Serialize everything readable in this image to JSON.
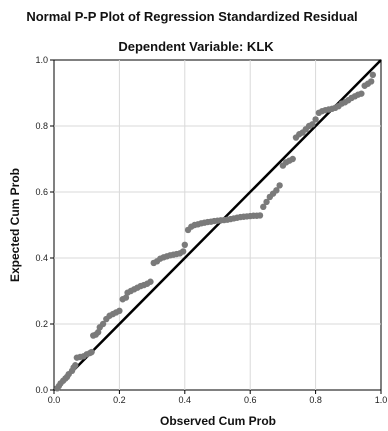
{
  "chart_data": {
    "type": "scatter",
    "title": "Normal P-P Plot of Regression Standardized Residual",
    "subtitle": "Dependent Variable: KLK",
    "xlabel": "Observed Cum Prob",
    "ylabel": "Expected Cum Prob",
    "xlim": [
      0,
      1
    ],
    "ylim": [
      0,
      1
    ],
    "xticks": [
      "0.0",
      "0.2",
      "0.4",
      "0.6",
      "0.8",
      "1.0"
    ],
    "yticks": [
      "0.0",
      "0.2",
      "0.4",
      "0.6",
      "0.8",
      "1.0"
    ],
    "grid": true,
    "reference_line": {
      "from": [
        0,
        0
      ],
      "to": [
        1,
        1
      ],
      "color": "#000000"
    },
    "point_color": "#7a7a7a",
    "points": [
      [
        0.01,
        0.005
      ],
      [
        0.015,
        0.012
      ],
      [
        0.02,
        0.02
      ],
      [
        0.028,
        0.028
      ],
      [
        0.035,
        0.035
      ],
      [
        0.04,
        0.04
      ],
      [
        0.045,
        0.048
      ],
      [
        0.055,
        0.058
      ],
      [
        0.06,
        0.068
      ],
      [
        0.065,
        0.075
      ],
      [
        0.07,
        0.098
      ],
      [
        0.08,
        0.1
      ],
      [
        0.09,
        0.102
      ],
      [
        0.1,
        0.108
      ],
      [
        0.11,
        0.112
      ],
      [
        0.115,
        0.115
      ],
      [
        0.12,
        0.165
      ],
      [
        0.128,
        0.168
      ],
      [
        0.135,
        0.175
      ],
      [
        0.14,
        0.19
      ],
      [
        0.15,
        0.2
      ],
      [
        0.16,
        0.215
      ],
      [
        0.17,
        0.225
      ],
      [
        0.18,
        0.23
      ],
      [
        0.19,
        0.235
      ],
      [
        0.2,
        0.24
      ],
      [
        0.21,
        0.275
      ],
      [
        0.22,
        0.28
      ],
      [
        0.225,
        0.295
      ],
      [
        0.235,
        0.3
      ],
      [
        0.245,
        0.305
      ],
      [
        0.255,
        0.31
      ],
      [
        0.265,
        0.315
      ],
      [
        0.275,
        0.318
      ],
      [
        0.285,
        0.322
      ],
      [
        0.295,
        0.328
      ],
      [
        0.305,
        0.385
      ],
      [
        0.315,
        0.39
      ],
      [
        0.325,
        0.398
      ],
      [
        0.335,
        0.402
      ],
      [
        0.345,
        0.405
      ],
      [
        0.355,
        0.408
      ],
      [
        0.365,
        0.41
      ],
      [
        0.375,
        0.412
      ],
      [
        0.385,
        0.414
      ],
      [
        0.395,
        0.42
      ],
      [
        0.4,
        0.44
      ],
      [
        0.41,
        0.485
      ],
      [
        0.42,
        0.495
      ],
      [
        0.43,
        0.5
      ],
      [
        0.44,
        0.502
      ],
      [
        0.45,
        0.505
      ],
      [
        0.46,
        0.507
      ],
      [
        0.47,
        0.509
      ],
      [
        0.48,
        0.51
      ],
      [
        0.49,
        0.512
      ],
      [
        0.5,
        0.513
      ],
      [
        0.51,
        0.514
      ],
      [
        0.52,
        0.515
      ],
      [
        0.53,
        0.516
      ],
      [
        0.54,
        0.518
      ],
      [
        0.55,
        0.52
      ],
      [
        0.56,
        0.522
      ],
      [
        0.57,
        0.524
      ],
      [
        0.58,
        0.525
      ],
      [
        0.59,
        0.526
      ],
      [
        0.6,
        0.527
      ],
      [
        0.61,
        0.528
      ],
      [
        0.62,
        0.528
      ],
      [
        0.63,
        0.529
      ],
      [
        0.64,
        0.555
      ],
      [
        0.65,
        0.57
      ],
      [
        0.66,
        0.585
      ],
      [
        0.67,
        0.595
      ],
      [
        0.68,
        0.605
      ],
      [
        0.69,
        0.62
      ],
      [
        0.7,
        0.68
      ],
      [
        0.71,
        0.69
      ],
      [
        0.72,
        0.695
      ],
      [
        0.73,
        0.7
      ],
      [
        0.74,
        0.765
      ],
      [
        0.75,
        0.775
      ],
      [
        0.76,
        0.78
      ],
      [
        0.77,
        0.79
      ],
      [
        0.78,
        0.8
      ],
      [
        0.79,
        0.805
      ],
      [
        0.8,
        0.82
      ],
      [
        0.81,
        0.84
      ],
      [
        0.82,
        0.845
      ],
      [
        0.83,
        0.848
      ],
      [
        0.84,
        0.85
      ],
      [
        0.85,
        0.852
      ],
      [
        0.86,
        0.855
      ],
      [
        0.87,
        0.86
      ],
      [
        0.88,
        0.868
      ],
      [
        0.89,
        0.872
      ],
      [
        0.9,
        0.878
      ],
      [
        0.91,
        0.885
      ],
      [
        0.92,
        0.89
      ],
      [
        0.93,
        0.895
      ],
      [
        0.94,
        0.898
      ],
      [
        0.95,
        0.922
      ],
      [
        0.96,
        0.928
      ],
      [
        0.97,
        0.935
      ],
      [
        0.975,
        0.955
      ]
    ]
  }
}
